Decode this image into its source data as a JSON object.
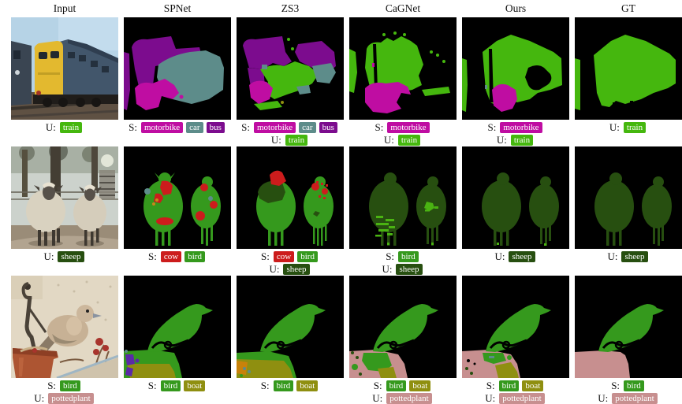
{
  "columns": [
    "Input",
    "SPNet",
    "ZS3",
    "CaGNet",
    "Ours",
    "GT"
  ],
  "legend_prefixes": {
    "seen": "S:",
    "unseen": "U:"
  },
  "colors": {
    "train": "#45b70e",
    "motorbike": "#bf0da2",
    "car": "#5d8c8a",
    "bus": "#7c0c8e",
    "cow": "#cc1c1c",
    "bird": "#35991d",
    "sheep": "#274f10",
    "boat": "#8f8f10",
    "pottedplant": "#c78f8f",
    "background": "#000000"
  },
  "rows": [
    {
      "cells": [
        {
          "lines": [
            {
              "prefix": "U:",
              "badges": [
                "train"
              ]
            }
          ]
        },
        {
          "lines": [
            {
              "prefix": "S:",
              "badges": [
                "motorbike",
                "car",
                "bus"
              ]
            }
          ]
        },
        {
          "lines": [
            {
              "prefix": "S:",
              "badges": [
                "motorbike",
                "car",
                "bus"
              ]
            },
            {
              "prefix": "U:",
              "badges": [
                "train"
              ]
            }
          ]
        },
        {
          "lines": [
            {
              "prefix": "S:",
              "badges": [
                "motorbike"
              ]
            },
            {
              "prefix": "U:",
              "badges": [
                "train"
              ]
            }
          ]
        },
        {
          "lines": [
            {
              "prefix": "S:",
              "badges": [
                "motorbike"
              ]
            },
            {
              "prefix": "U:",
              "badges": [
                "train"
              ]
            }
          ]
        },
        {
          "lines": [
            {
              "prefix": "U:",
              "badges": [
                "train"
              ]
            }
          ]
        }
      ]
    },
    {
      "cells": [
        {
          "lines": [
            {
              "prefix": "U:",
              "badges": [
                "sheep"
              ]
            }
          ]
        },
        {
          "lines": [
            {
              "prefix": "S:",
              "badges": [
                "cow",
                "bird"
              ]
            }
          ]
        },
        {
          "lines": [
            {
              "prefix": "S:",
              "badges": [
                "cow",
                "bird"
              ]
            },
            {
              "prefix": "U:",
              "badges": [
                "sheep"
              ]
            }
          ]
        },
        {
          "lines": [
            {
              "prefix": "S:",
              "badges": [
                "bird"
              ]
            },
            {
              "prefix": "U:",
              "badges": [
                "sheep"
              ]
            }
          ]
        },
        {
          "lines": [
            {
              "prefix": "U:",
              "badges": [
                "sheep"
              ]
            }
          ]
        },
        {
          "lines": [
            {
              "prefix": "U:",
              "badges": [
                "sheep"
              ]
            }
          ]
        }
      ]
    },
    {
      "cells": [
        {
          "lines": [
            {
              "prefix": "S:",
              "badges": [
                "bird"
              ]
            },
            {
              "prefix": "U:",
              "badges": [
                "pottedplant"
              ]
            }
          ]
        },
        {
          "lines": [
            {
              "prefix": "S:",
              "badges": [
                "bird",
                "boat"
              ]
            }
          ]
        },
        {
          "lines": [
            {
              "prefix": "S:",
              "badges": [
                "bird",
                "boat"
              ]
            }
          ]
        },
        {
          "lines": [
            {
              "prefix": "S:",
              "badges": [
                "bird",
                "boat"
              ]
            },
            {
              "prefix": "U:",
              "badges": [
                "pottedplant"
              ]
            }
          ]
        },
        {
          "lines": [
            {
              "prefix": "S:",
              "badges": [
                "bird",
                "boat"
              ]
            },
            {
              "prefix": "U:",
              "badges": [
                "pottedplant"
              ]
            }
          ]
        },
        {
          "lines": [
            {
              "prefix": "S:",
              "badges": [
                "bird"
              ]
            },
            {
              "prefix": "U:",
              "badges": [
                "pottedplant"
              ]
            }
          ]
        }
      ]
    }
  ]
}
